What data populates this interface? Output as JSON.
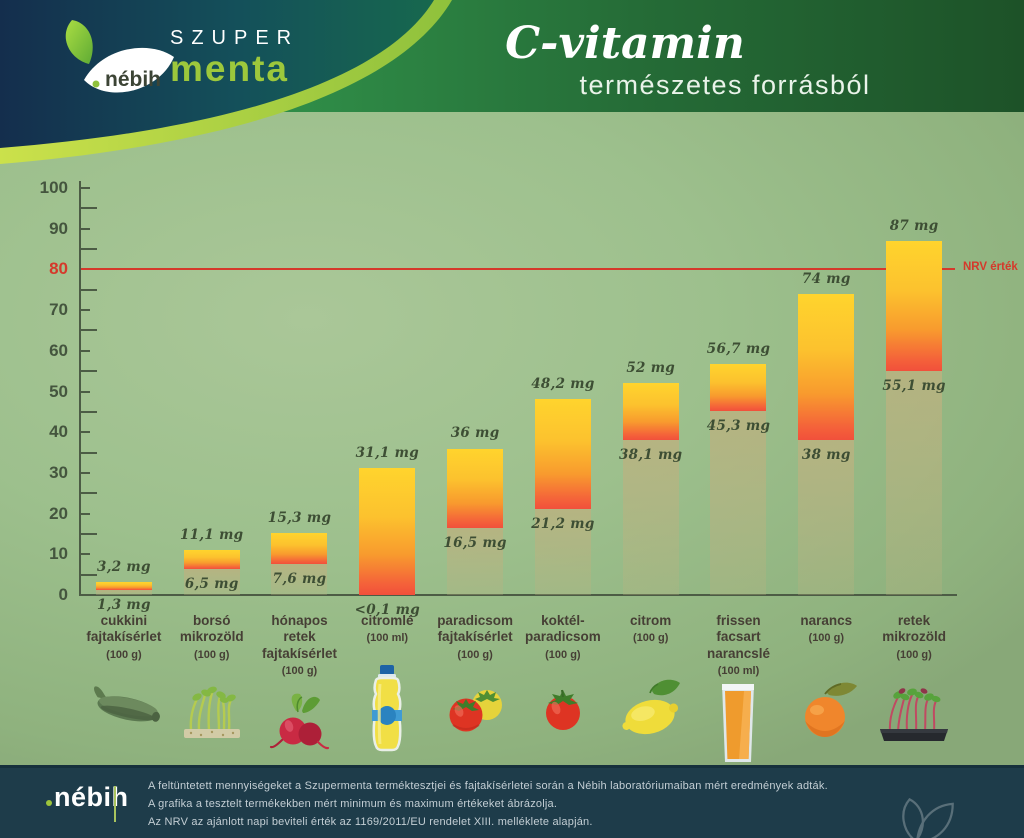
{
  "header": {
    "brand": {
      "logo_text": "nébih",
      "brand_line1": "SZUPER",
      "brand_line2": "menta"
    },
    "title": "C-vitamin",
    "subtitle": "természetes forrásból"
  },
  "chart_data": {
    "type": "bar",
    "title": "C-vitamin természetes forrásból",
    "value_unit": "mg",
    "ylim": [
      0,
      100
    ],
    "yticks": [
      0,
      10,
      20,
      30,
      40,
      50,
      60,
      70,
      80,
      90,
      100
    ],
    "ytick_minor_step": 5,
    "grid": false,
    "reference_line": {
      "value": 80,
      "label": "NRV érték",
      "color": "#d5392b"
    },
    "categories": [
      "cukkini fajtakísérlet",
      "borsó mikrozöld",
      "hónapos retek fajtakísérlet",
      "citromlé",
      "paradicsom fajtakísérlet",
      "koktél-paradicsom",
      "citrom",
      "frissen facsart narancslé",
      "narancs",
      "retek mikrozöld"
    ],
    "series": [
      {
        "name": "minimum (mg)",
        "values": [
          1.3,
          6.5,
          7.6,
          0.1,
          16.5,
          21.2,
          38.1,
          45.3,
          38,
          55.1
        ]
      },
      {
        "name": "maximum (mg)",
        "values": [
          3.2,
          11.1,
          15.3,
          31.1,
          36,
          48.2,
          52,
          56.7,
          74,
          87
        ]
      }
    ],
    "items": [
      {
        "name_lines": [
          "cukkini",
          "fajtakísérlet"
        ],
        "basis": "(100 g)",
        "min": 1.3,
        "max": 3.2,
        "min_label": "1,3 mg",
        "max_label": "3,2 mg",
        "icon": "zucchini-icon"
      },
      {
        "name_lines": [
          "borsó",
          "mikrozöld"
        ],
        "basis": "(100 g)",
        "min": 6.5,
        "max": 11.1,
        "min_label": "6,5 mg",
        "max_label": "11,1 mg",
        "icon": "pea-microgreen-icon"
      },
      {
        "name_lines": [
          "hónapos retek",
          "fajtakísérlet"
        ],
        "basis": "(100 g)",
        "min": 7.6,
        "max": 15.3,
        "min_label": "7,6 mg",
        "max_label": "15,3 mg",
        "icon": "radish-icon"
      },
      {
        "name_lines": [
          "citromlé"
        ],
        "basis": "(100 ml)",
        "min": 0.1,
        "max": 31.1,
        "min_label": "<0,1 mg",
        "max_label": "31,1 mg",
        "icon": "lemon-juice-bottle-icon"
      },
      {
        "name_lines": [
          "paradicsom",
          "fajtakísérlet"
        ],
        "basis": "(100 g)",
        "min": 16.5,
        "max": 36,
        "min_label": "16,5 mg",
        "max_label": "36 mg",
        "icon": "tomatoes-icon"
      },
      {
        "name_lines": [
          "koktél-",
          "paradicsom"
        ],
        "basis": "(100 g)",
        "min": 21.2,
        "max": 48.2,
        "min_label": "21,2 mg",
        "max_label": "48,2 mg",
        "icon": "cocktail-tomato-icon"
      },
      {
        "name_lines": [
          "citrom"
        ],
        "basis": "(100 g)",
        "min": 38.1,
        "max": 52,
        "min_label": "38,1 mg",
        "max_label": "52 mg",
        "icon": "lemon-icon"
      },
      {
        "name_lines": [
          "frissen facsart",
          "narancslé"
        ],
        "basis": "(100 ml)",
        "min": 45.3,
        "max": 56.7,
        "min_label": "45,3 mg",
        "max_label": "56,7 mg",
        "icon": "orange-juice-glass-icon"
      },
      {
        "name_lines": [
          "narancs"
        ],
        "basis": "(100 g)",
        "min": 38,
        "max": 74,
        "min_label": "38 mg",
        "max_label": "74 mg",
        "icon": "orange-icon"
      },
      {
        "name_lines": [
          "retek mikrozöld"
        ],
        "basis": "(100 g)",
        "min": 55.1,
        "max": 87,
        "min_label": "55,1 mg",
        "max_label": "87 mg",
        "icon": "radish-microgreen-icon"
      }
    ]
  },
  "footer": {
    "logo_text": "nébih",
    "lines": [
      "A feltüntetett mennyiségeket a Szupermenta terméktesztjei és fajtakísérletei során a Nébih laboratóriumaiban mért eredmények adták.",
      "A grafika a tesztelt termékekben mért minimum és maximum értékeket ábrázolja.",
      "Az NRV az ajánlott napi beviteli érték az 1169/2011/EU rendelet XIII. melléklete alapján."
    ]
  },
  "colors": {
    "accent_green": "#9dc43b",
    "band_green_light": "#2f8c47",
    "band_green_dark": "#1d5228",
    "navy": "#142f4e",
    "background_green": "#9dc08d",
    "footer_bg": "#1e3c4a",
    "nrv_red": "#d5392b",
    "bar_yellow": "#ffd42d",
    "bar_orange_red": "#f1503b",
    "range_shadow": "#bab280"
  }
}
